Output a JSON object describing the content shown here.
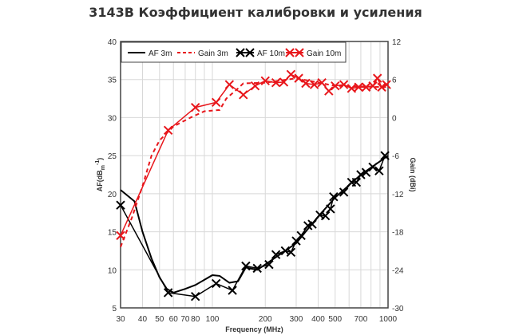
{
  "title": "3143B Коэффициент калибровки и усиления",
  "chart_data": {
    "type": "line",
    "title": "3143B Коэффициент калибровки и усиления",
    "xlabel": "Frequency (MHz)",
    "ylabel": "AF(dBm-1)",
    "ylabel_main": "AF(dB",
    "ylabel_sub": "m",
    "ylabel_sup": "-1",
    "ylabel_end": ")",
    "y2label": "Gain (dBi)",
    "xscale": "log",
    "xlim": [
      30,
      1000
    ],
    "ylim": [
      5,
      40
    ],
    "y2lim": [
      -30,
      12
    ],
    "grid": true,
    "legend_position": "top-left",
    "xticks": [
      30,
      40,
      50,
      60,
      70,
      80,
      100,
      200,
      300,
      400,
      500,
      700,
      1000
    ],
    "yticks": [
      5,
      10,
      15,
      20,
      25,
      30,
      35,
      40
    ],
    "y2ticks": [
      -30,
      -24,
      -18,
      -12,
      -6,
      0,
      6,
      12
    ],
    "colors": {
      "af": "#000000",
      "gain": "#e8161b"
    },
    "series": [
      {
        "name": "AF 3m",
        "axis": "left",
        "style": "solid",
        "x": [
          30,
          36,
          40,
          45,
          50,
          55,
          60,
          70,
          80,
          100,
          110,
          125,
          140,
          155,
          180,
          200,
          300,
          400,
          500,
          700,
          1000
        ],
        "y": [
          20.5,
          19,
          15,
          11.5,
          9,
          7.5,
          7,
          7.5,
          8,
          9.3,
          9.2,
          8.3,
          8.5,
          10.3,
          10,
          10.7,
          13.5,
          17,
          19.5,
          22.5,
          25
        ]
      },
      {
        "name": "Gain 3m",
        "axis": "right",
        "style": "dashed",
        "x": [
          30,
          35,
          40,
          45,
          50,
          60,
          75,
          90,
          110,
          120,
          140,
          150,
          200,
          300,
          500,
          1000
        ],
        "y": [
          -20.4,
          -15.6,
          -10.8,
          -6,
          -3.6,
          -1.4,
          0,
          1,
          1.2,
          3,
          4.6,
          5.4,
          5.5,
          6.2,
          5,
          4.8
        ]
      },
      {
        "name": "AF 10m",
        "axis": "left",
        "style": "markers",
        "x": [
          30,
          56,
          80,
          105,
          130,
          155,
          180,
          210,
          230,
          260,
          280,
          300,
          320,
          350,
          370,
          410,
          440,
          470,
          490,
          560,
          620,
          660,
          700,
          750,
          820,
          890,
          960
        ],
        "y": [
          18.5,
          7,
          6.5,
          8.2,
          7.3,
          10.5,
          10.2,
          10.7,
          12,
          12.5,
          12.3,
          13.8,
          14.5,
          15.8,
          16,
          17.2,
          17.1,
          18,
          19.6,
          20.2,
          21.5,
          21.5,
          22.5,
          22.8,
          23.5,
          23,
          25
        ]
      },
      {
        "name": "Gain 10m",
        "axis": "right",
        "style": "markers",
        "x": [
          30,
          56,
          80,
          105,
          125,
          150,
          175,
          200,
          230,
          255,
          280,
          310,
          340,
          380,
          420,
          460,
          500,
          560,
          620,
          680,
          750,
          820,
          870,
          920,
          980
        ],
        "y": [
          -18.6,
          -2,
          1.6,
          2.4,
          5.2,
          3.6,
          5,
          5.8,
          5.5,
          5.6,
          6.8,
          6.2,
          5.4,
          5.2,
          5.5,
          4.2,
          5,
          5.2,
          4.6,
          4.8,
          4.8,
          5,
          6.2,
          4.8,
          5.2
        ]
      }
    ]
  }
}
